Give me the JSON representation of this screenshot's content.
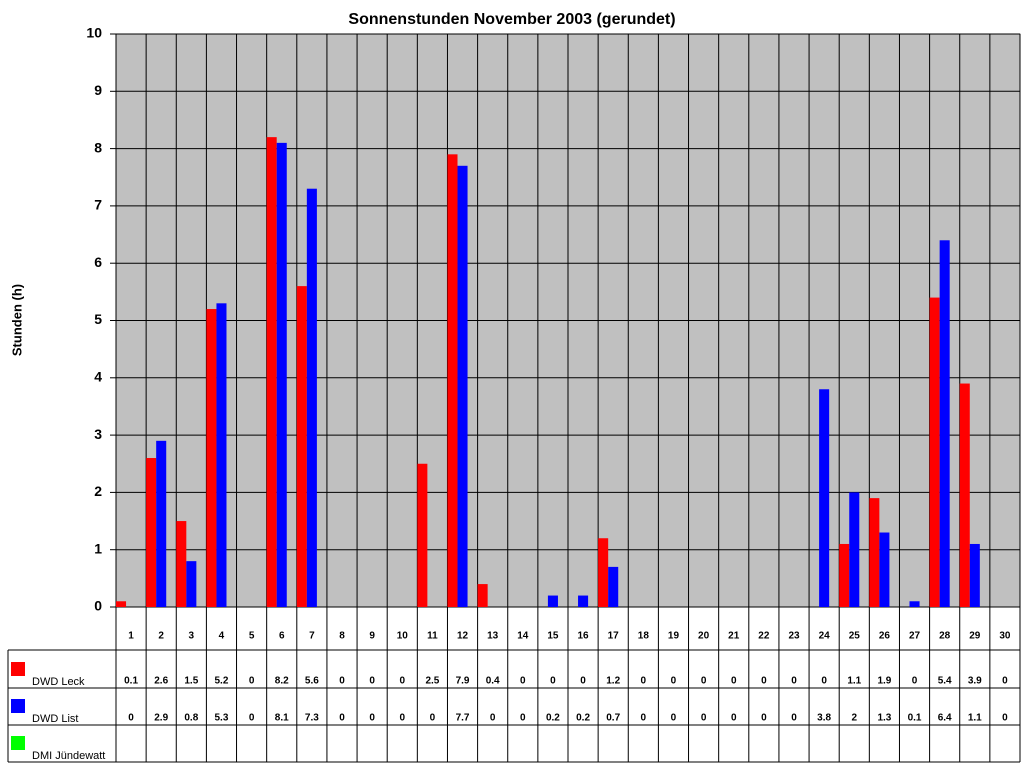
{
  "chart_data": {
    "type": "bar",
    "title": "Sonnenstunden November 2003 (gerundet)",
    "y_label": "Stunden (h)",
    "categories": [
      "1",
      "2",
      "3",
      "4",
      "5",
      "6",
      "7",
      "8",
      "9",
      "10",
      "11",
      "12",
      "13",
      "14",
      "15",
      "16",
      "17",
      "18",
      "19",
      "20",
      "21",
      "22",
      "23",
      "24",
      "25",
      "26",
      "27",
      "28",
      "29",
      "30"
    ],
    "series": [
      {
        "name": "DWD Leck",
        "color": "#ff0000",
        "values": [
          0.1,
          2.6,
          1.5,
          5.2,
          0,
          8.2,
          5.6,
          0,
          0,
          0,
          2.5,
          7.9,
          0.4,
          0,
          0,
          0,
          1.2,
          0,
          0,
          0,
          0,
          0,
          0,
          0,
          1.1,
          1.9,
          0,
          5.4,
          3.9,
          0
        ]
      },
      {
        "name": "DWD List",
        "color": "#0000ff",
        "values": [
          0,
          2.9,
          0.8,
          5.3,
          0,
          8.1,
          7.3,
          0,
          0,
          0,
          0,
          7.7,
          0,
          0,
          0.2,
          0.2,
          0.7,
          0,
          0,
          0,
          0,
          0,
          0,
          3.8,
          2,
          1.3,
          0.1,
          6.4,
          1.1,
          0
        ]
      },
      {
        "name": "DMI Jündewatt",
        "color": "#00ff00",
        "values": [
          null,
          null,
          null,
          null,
          null,
          null,
          null,
          null,
          null,
          null,
          null,
          null,
          null,
          null,
          null,
          null,
          null,
          null,
          null,
          null,
          null,
          null,
          null,
          null,
          null,
          null,
          null,
          null,
          null,
          null
        ]
      }
    ],
    "ylim": [
      0,
      10
    ],
    "yticks": [
      0,
      1,
      2,
      3,
      4,
      5,
      6,
      7,
      8,
      9,
      10
    ],
    "grid": true,
    "data_table": true
  }
}
